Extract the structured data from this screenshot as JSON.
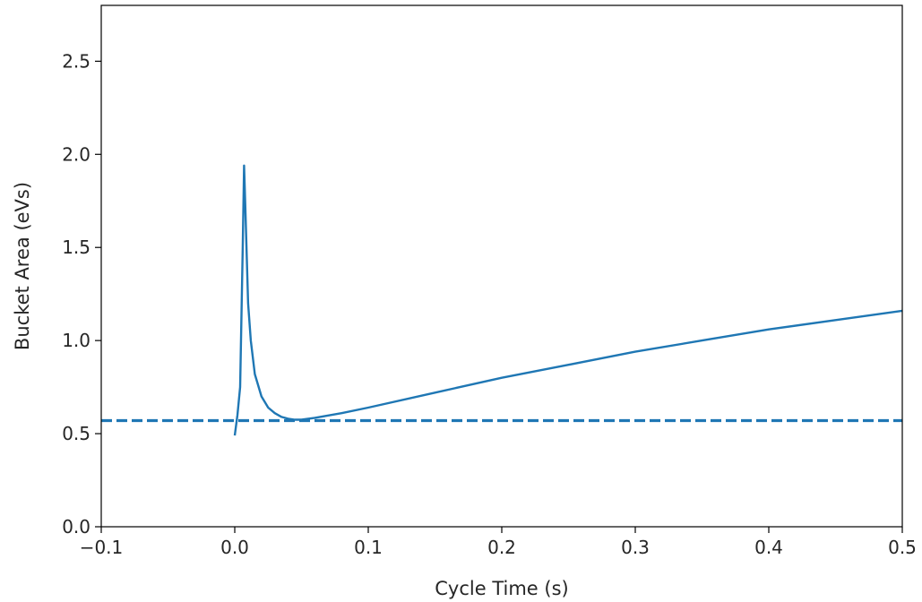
{
  "chart_data": {
    "type": "line",
    "title": "",
    "xlabel": "Cycle Time (s)",
    "ylabel": "Bucket Area (eVs)",
    "xlim": [
      -0.1,
      0.5
    ],
    "ylim": [
      0.0,
      2.8
    ],
    "x_ticks": [
      -0.1,
      0.0,
      0.1,
      0.2,
      0.3,
      0.4,
      0.5
    ],
    "x_tick_labels": [
      "−0.1",
      "0.0",
      "0.1",
      "0.2",
      "0.3",
      "0.4",
      "0.5"
    ],
    "y_ticks": [
      0.0,
      0.5,
      1.0,
      1.5,
      2.0,
      2.5
    ],
    "y_tick_labels": [
      "0.0",
      "0.5",
      "1.0",
      "1.5",
      "2.0",
      "2.5"
    ],
    "grid": false,
    "legend": "none",
    "series": [
      {
        "style": "solid",
        "color": "#1f77b4",
        "x": [
          0.0,
          0.002,
          0.004,
          0.006,
          0.007,
          0.008,
          0.01,
          0.012,
          0.015,
          0.02,
          0.025,
          0.03,
          0.035,
          0.04,
          0.045,
          0.05,
          0.06,
          0.08,
          0.1,
          0.15,
          0.2,
          0.25,
          0.3,
          0.35,
          0.4,
          0.45,
          0.5
        ],
        "values": [
          0.49,
          0.6,
          0.75,
          1.5,
          1.94,
          1.7,
          1.2,
          1.0,
          0.82,
          0.7,
          0.64,
          0.61,
          0.59,
          0.58,
          0.575,
          0.575,
          0.585,
          0.61,
          0.64,
          0.72,
          0.8,
          0.87,
          0.94,
          1.0,
          1.06,
          1.11,
          1.16
        ]
      },
      {
        "style": "dashed",
        "color": "#1f77b4",
        "x": [
          -0.1,
          0.5
        ],
        "values": [
          0.57,
          0.57
        ]
      }
    ]
  }
}
